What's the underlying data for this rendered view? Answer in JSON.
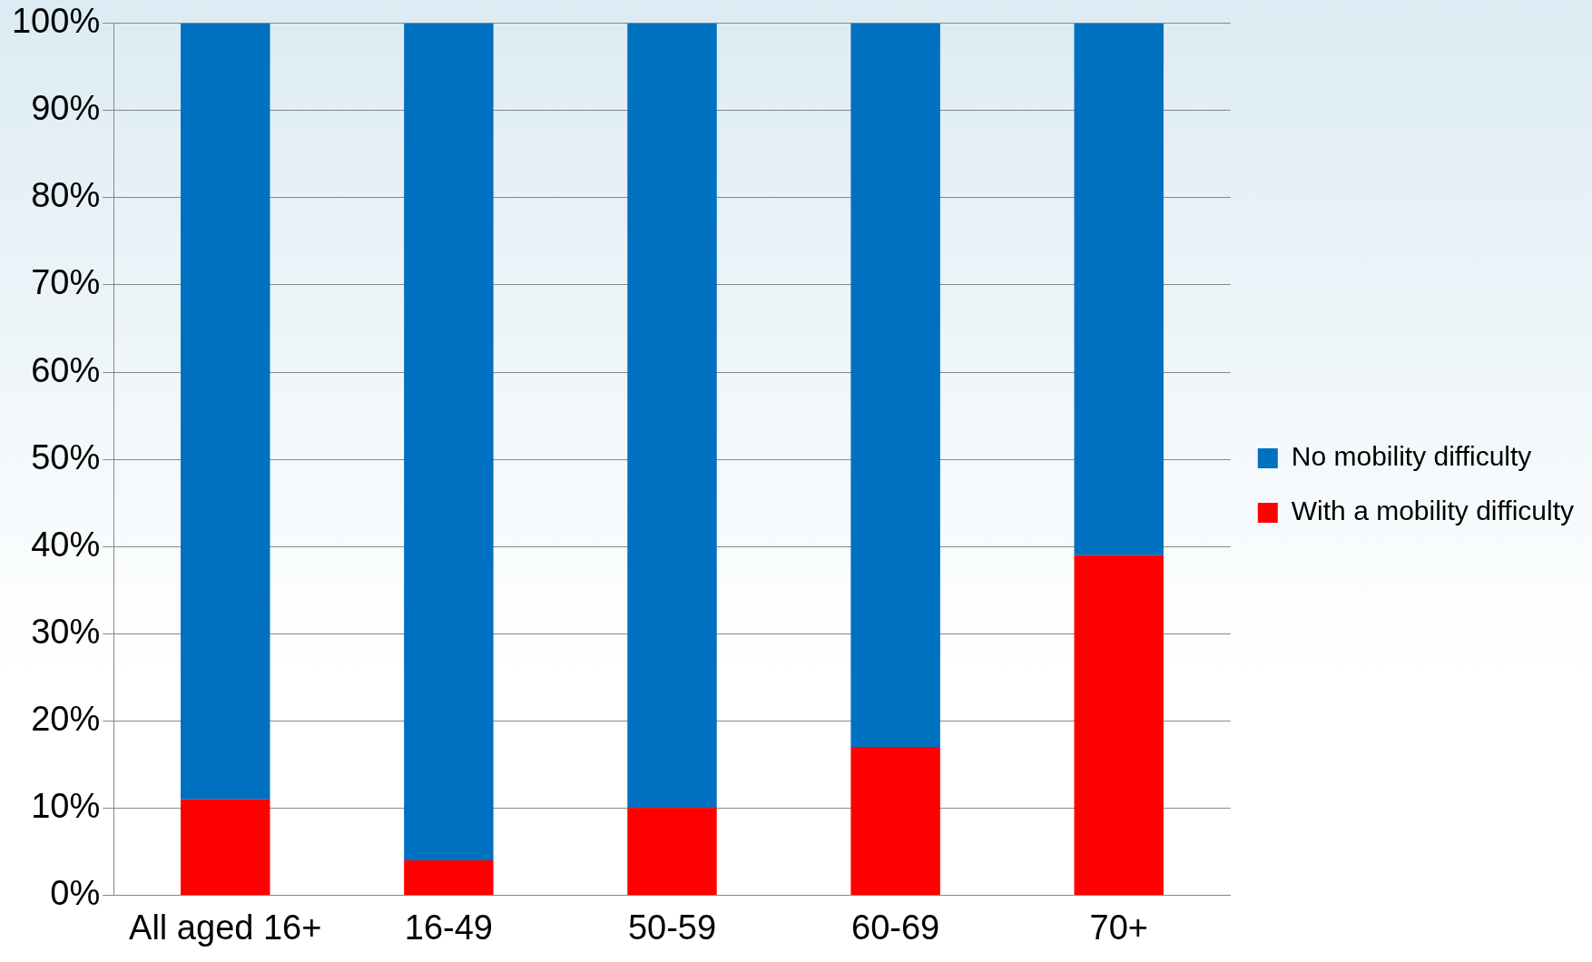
{
  "chart_data": {
    "type": "bar",
    "stacked": true,
    "categories": [
      "All aged 16+",
      "16-49",
      "50-59",
      "60-69",
      "70+"
    ],
    "series": [
      {
        "name": "With a mobility difficulty",
        "color": "#ff0000",
        "values": [
          11,
          4,
          10,
          17,
          39
        ]
      },
      {
        "name": "No mobility difficulty",
        "color": "#0070c0",
        "values": [
          89,
          96,
          90,
          83,
          61
        ]
      }
    ],
    "ylim": [
      0,
      100
    ],
    "yticks": [
      {
        "value": 0,
        "label": "0%"
      },
      {
        "value": 10,
        "label": "10%"
      },
      {
        "value": 20,
        "label": "20%"
      },
      {
        "value": 30,
        "label": "30%"
      },
      {
        "value": 40,
        "label": "40%"
      },
      {
        "value": 50,
        "label": "50%"
      },
      {
        "value": 60,
        "label": "60%"
      },
      {
        "value": 70,
        "label": "70%"
      },
      {
        "value": 80,
        "label": "80%"
      },
      {
        "value": 90,
        "label": "90%"
      },
      {
        "value": 100,
        "label": "100%"
      }
    ],
    "grid": "y",
    "legend": "right"
  }
}
